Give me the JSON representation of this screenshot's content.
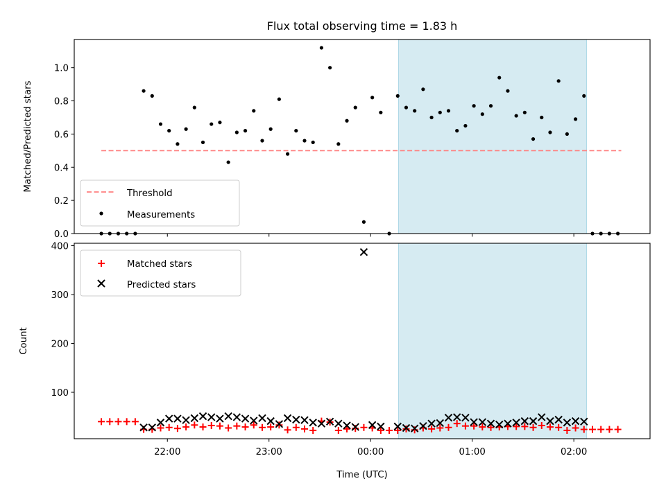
{
  "figure": {
    "title": "Flux total observing time = 1.83 h",
    "xlabel": "Time (UTC)"
  },
  "chart_data": [
    {
      "type": "scatter",
      "panel": "top",
      "ylabel": "Matched/Predicted stars",
      "ylim": [
        0,
        1.17
      ],
      "xlim": [
        -175,
        165
      ],
      "x_unit": "minutes from 00:00 UTC",
      "yticks": [
        0.0,
        0.2,
        0.4,
        0.6,
        0.8,
        1.0
      ],
      "ytick_labels": [
        "0.0",
        "0.2",
        "0.4",
        "0.6",
        "0.8",
        "1.0"
      ],
      "xticks": [
        -120,
        -60,
        0,
        60,
        120
      ],
      "shaded_span": [
        16.5,
        127.5
      ],
      "shade_color": "#add8e6",
      "legend": {
        "placement": "lower-left",
        "entries": [
          "Threshold",
          "Measurements"
        ]
      },
      "series": [
        {
          "name": "Threshold",
          "style": "dashed-line",
          "color": "#ff7f7f",
          "x": [
            -159,
            148
          ],
          "y": [
            0.5,
            0.5
          ]
        },
        {
          "name": "Measurements",
          "style": "dot",
          "color": "#000000",
          "x": [
            -159,
            -154,
            -149,
            -144,
            -139,
            -134,
            -129,
            -124,
            -119,
            -114,
            -109,
            -104,
            -99,
            -94,
            -89,
            -84,
            -79,
            -74,
            -69,
            -64,
            -59,
            -54,
            -49,
            -44,
            -39,
            -34,
            -29,
            -24,
            -19,
            -14,
            -9,
            -4,
            1,
            6,
            11,
            16,
            21,
            26,
            31,
            36,
            41,
            46,
            51,
            56,
            61,
            66,
            71,
            76,
            81,
            86,
            91,
            96,
            101,
            106,
            111,
            116,
            121,
            126,
            131,
            136,
            141,
            146
          ],
          "y": [
            0.0,
            0.0,
            0.0,
            0.0,
            0.0,
            0.86,
            0.83,
            0.66,
            0.62,
            0.54,
            0.63,
            0.76,
            0.55,
            0.66,
            0.67,
            0.43,
            0.61,
            0.62,
            0.74,
            0.56,
            0.63,
            0.81,
            0.48,
            0.62,
            0.56,
            0.55,
            1.12,
            1.0,
            0.54,
            0.68,
            0.76,
            0.07,
            0.82,
            0.73,
            0.0,
            0.83,
            0.76,
            0.74,
            0.87,
            0.7,
            0.73,
            0.74,
            0.62,
            0.65,
            0.77,
            0.72,
            0.77,
            0.94,
            0.86,
            0.71,
            0.73,
            0.57,
            0.7,
            0.61,
            0.92,
            0.6,
            0.69,
            0.83,
            0.0,
            0.0,
            0.0,
            0.0
          ]
        }
      ]
    },
    {
      "type": "scatter",
      "panel": "bottom",
      "ylabel": "Count",
      "ylim": [
        5,
        405
      ],
      "xlim": [
        -175,
        165
      ],
      "x_unit": "minutes from 00:00 UTC",
      "yticks": [
        100,
        200,
        300,
        400
      ],
      "ytick_labels": [
        "100",
        "200",
        "300",
        "400"
      ],
      "xticks": [
        -120,
        -60,
        0,
        60,
        120
      ],
      "xtick_labels": [
        "22:00",
        "23:00",
        "00:00",
        "01:00",
        "02:00"
      ],
      "shaded_span": [
        16.5,
        127.5
      ],
      "shade_color": "#add8e6",
      "legend": {
        "placement": "upper-left",
        "entries": [
          "Matched stars",
          "Predicted stars"
        ]
      },
      "series": [
        {
          "name": "Matched stars",
          "marker": "plus",
          "color": "#ff0000",
          "x": [
            -159,
            -154,
            -149,
            -144,
            -139,
            -134,
            -129,
            -124,
            -119,
            -114,
            -109,
            -104,
            -99,
            -94,
            -89,
            -84,
            -79,
            -74,
            -69,
            -64,
            -59,
            -54,
            -49,
            -44,
            -39,
            -34,
            -29,
            -24,
            -19,
            -14,
            -9,
            -4,
            1,
            6,
            11,
            16,
            21,
            26,
            31,
            36,
            41,
            46,
            51,
            56,
            61,
            66,
            71,
            76,
            81,
            86,
            91,
            96,
            101,
            106,
            111,
            116,
            121,
            126,
            131,
            136,
            141,
            146
          ],
          "y": [
            40,
            40,
            40,
            40,
            40,
            24,
            24,
            27,
            28,
            26,
            29,
            33,
            29,
            32,
            31,
            27,
            31,
            29,
            33,
            28,
            29,
            33,
            23,
            28,
            25,
            22,
            41,
            39,
            22,
            25,
            26,
            28,
            27,
            22,
            22,
            22,
            25,
            23,
            27,
            25,
            27,
            28,
            36,
            31,
            31,
            29,
            28,
            29,
            30,
            30,
            30,
            28,
            32,
            29,
            28,
            22,
            27,
            24,
            24,
            24,
            24,
            24
          ]
        },
        {
          "name": "Predicted stars",
          "marker": "x",
          "color": "#000000",
          "x": [
            -134,
            -129,
            -124,
            -119,
            -114,
            -109,
            -104,
            -99,
            -94,
            -89,
            -84,
            -79,
            -74,
            -69,
            -64,
            -59,
            -54,
            -49,
            -44,
            -39,
            -34,
            -29,
            -24,
            -19,
            -14,
            -9,
            -4,
            1,
            6,
            16,
            21,
            26,
            31,
            36,
            41,
            46,
            51,
            56,
            61,
            66,
            71,
            76,
            81,
            86,
            91,
            96,
            101,
            106,
            111,
            116,
            121,
            126
          ],
          "y": [
            28,
            28,
            38,
            46,
            46,
            43,
            47,
            51,
            49,
            46,
            51,
            49,
            46,
            42,
            47,
            41,
            35,
            47,
            44,
            43,
            38,
            36,
            40,
            36,
            32,
            29,
            387,
            33,
            30,
            30,
            27,
            26,
            31,
            36,
            37,
            48,
            49,
            48,
            39,
            39,
            36,
            34,
            36,
            38,
            41,
            41,
            49,
            41,
            44,
            38,
            41,
            40
          ]
        }
      ]
    }
  ]
}
